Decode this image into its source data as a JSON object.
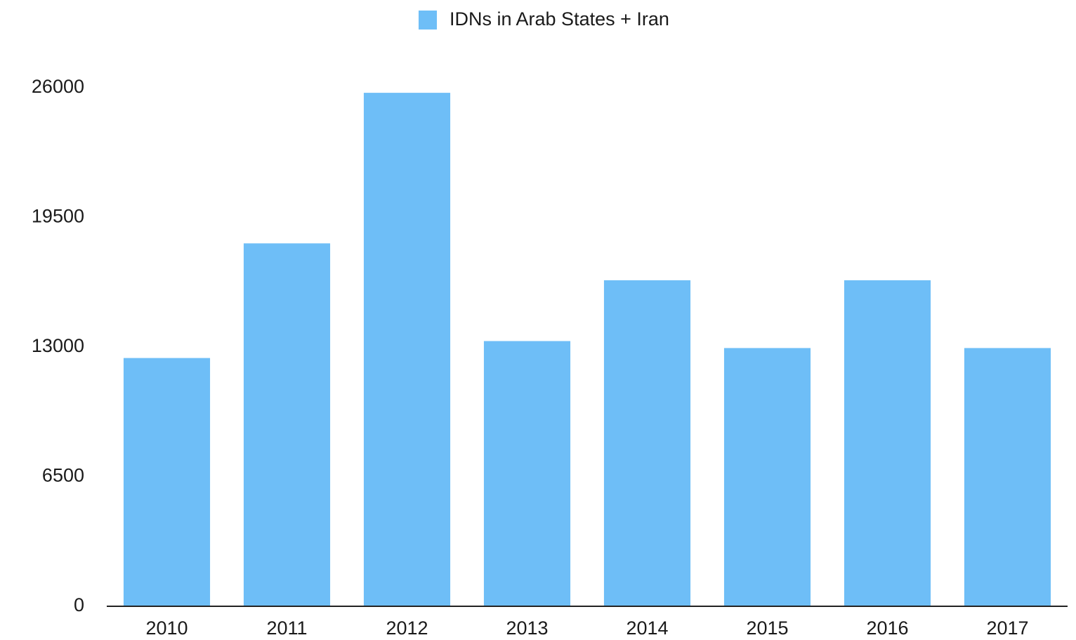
{
  "chart_data": {
    "type": "bar",
    "categories": [
      "2010",
      "2011",
      "2012",
      "2013",
      "2014",
      "2015",
      "2016",
      "2017"
    ],
    "series": [
      {
        "name": "IDNs in Arab States + Iran",
        "color": "#6ebef7",
        "values": [
          12450,
          18200,
          25750,
          13300,
          16350,
          12950,
          16350,
          12950
        ]
      }
    ],
    "ylim": [
      0,
      26000
    ],
    "yticks": [
      0,
      6500,
      13000,
      19500,
      26000
    ],
    "grid": false,
    "legend": "top"
  }
}
